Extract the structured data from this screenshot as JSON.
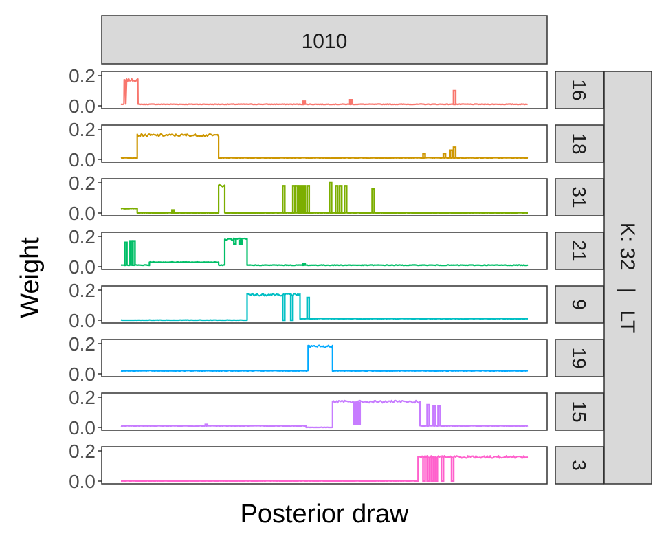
{
  "chart_data": {
    "type": "line",
    "facet_column_label": "1010",
    "facet_row_group_label": "K: 32   |   LT",
    "xlabel": "Posterior draw",
    "ylabel": "Weight",
    "ylim": [
      0,
      0.2
    ],
    "yticks": [
      "0.0",
      "0.2"
    ],
    "x_tick_labels_shown": false,
    "grid": false,
    "legend": "none",
    "n_draws": 1000,
    "panels": [
      {
        "label": "16",
        "color": "#F8766D",
        "segments": [
          {
            "x": [
              0,
              8
            ],
            "y": 0.01
          },
          {
            "x": [
              8,
              12
            ],
            "y": 0.17
          },
          {
            "x": [
              12,
              14
            ],
            "y": 0.01
          },
          {
            "x": [
              14,
              42
            ],
            "y": 0.17
          },
          {
            "x": [
              42,
              1000
            ],
            "y": 0.01
          }
        ],
        "spikes": [
          {
            "x": 450,
            "y": 0.03
          },
          {
            "x": 565,
            "y": 0.04
          },
          {
            "x": 820,
            "y": 0.1
          }
        ]
      },
      {
        "label": "18",
        "color": "#CD9600",
        "segments": [
          {
            "x": [
              0,
              40
            ],
            "y": 0.01
          },
          {
            "x": [
              40,
              240
            ],
            "y": 0.16
          },
          {
            "x": [
              240,
              1000
            ],
            "y": 0.01
          }
        ],
        "spikes": [
          {
            "x": 745,
            "y": 0.04
          },
          {
            "x": 795,
            "y": 0.04
          },
          {
            "x": 812,
            "y": 0.06
          },
          {
            "x": 820,
            "y": 0.08
          }
        ]
      },
      {
        "label": "31",
        "color": "#7CAE00",
        "segments": [
          {
            "x": [
              0,
              40
            ],
            "y": 0.03
          },
          {
            "x": [
              40,
              240
            ],
            "y": 0.0
          },
          {
            "x": [
              240,
              255
            ],
            "y": 0.18
          },
          {
            "x": [
              255,
              1000
            ],
            "y": 0.0
          }
        ],
        "spikes": [
          {
            "x": 128,
            "y": 0.02
          },
          {
            "x": 400,
            "y": 0.18
          },
          {
            "x": 425,
            "y": 0.18
          },
          {
            "x": 432,
            "y": 0.18
          },
          {
            "x": 440,
            "y": 0.18
          },
          {
            "x": 450,
            "y": 0.18
          },
          {
            "x": 460,
            "y": 0.18
          },
          {
            "x": 515,
            "y": 0.2
          },
          {
            "x": 530,
            "y": 0.18
          },
          {
            "x": 540,
            "y": 0.18
          },
          {
            "x": 552,
            "y": 0.18
          },
          {
            "x": 620,
            "y": 0.16
          }
        ]
      },
      {
        "label": "21",
        "color": "#00BE67",
        "segments": [
          {
            "x": [
              0,
              70
            ],
            "y": 0.01
          },
          {
            "x": [
              70,
              240
            ],
            "y": 0.03
          },
          {
            "x": [
              240,
              255
            ],
            "y": 0.01
          },
          {
            "x": [
              255,
              310
            ],
            "y": 0.18
          },
          {
            "x": [
              310,
              1000
            ],
            "y": 0.01
          }
        ],
        "spikes": [
          {
            "x": 12,
            "y": 0.16
          },
          {
            "x": 25,
            "y": 0.17
          },
          {
            "x": 32,
            "y": 0.17
          },
          {
            "x": 280,
            "y": 0.15
          },
          {
            "x": 295,
            "y": 0.15
          },
          {
            "x": 450,
            "y": 0.02
          }
        ]
      },
      {
        "label": "9",
        "color": "#00BFC4",
        "segments": [
          {
            "x": [
              0,
              310
            ],
            "y": 0.0
          },
          {
            "x": [
              310,
              440
            ],
            "y": 0.17
          },
          {
            "x": [
              440,
              1000
            ],
            "y": 0.01
          }
        ],
        "spikes": [
          {
            "x": 400,
            "y": 0.0
          },
          {
            "x": 420,
            "y": 0.0
          },
          {
            "x": 460,
            "y": 0.15
          }
        ]
      },
      {
        "label": "19",
        "color": "#00A9FF",
        "segments": [
          {
            "x": [
              0,
              460
            ],
            "y": 0.02
          },
          {
            "x": [
              460,
              520
            ],
            "y": 0.18
          },
          {
            "x": [
              520,
              1000
            ],
            "y": 0.02
          }
        ],
        "spikes": []
      },
      {
        "label": "15",
        "color": "#C77CFF",
        "segments": [
          {
            "x": [
              0,
              455
            ],
            "y": 0.01
          },
          {
            "x": [
              455,
              520
            ],
            "y": 0.0
          },
          {
            "x": [
              520,
              735
            ],
            "y": 0.17
          },
          {
            "x": [
              735,
              1000
            ],
            "y": 0.01
          }
        ],
        "spikes": [
          {
            "x": 210,
            "y": 0.02
          },
          {
            "x": 575,
            "y": 0.02
          },
          {
            "x": 585,
            "y": 0.02
          },
          {
            "x": 755,
            "y": 0.15
          },
          {
            "x": 770,
            "y": 0.14
          },
          {
            "x": 782,
            "y": 0.14
          }
        ]
      },
      {
        "label": "3",
        "color": "#FF61CC",
        "segments": [
          {
            "x": [
              0,
              730
            ],
            "y": 0.0
          },
          {
            "x": [
              730,
              1000
            ],
            "y": 0.16
          }
        ],
        "spikes": [
          {
            "x": 745,
            "y": 0.0
          },
          {
            "x": 755,
            "y": 0.0
          },
          {
            "x": 765,
            "y": 0.0
          },
          {
            "x": 775,
            "y": 0.0
          },
          {
            "x": 790,
            "y": 0.0
          },
          {
            "x": 815,
            "y": 0.0
          }
        ]
      }
    ]
  }
}
